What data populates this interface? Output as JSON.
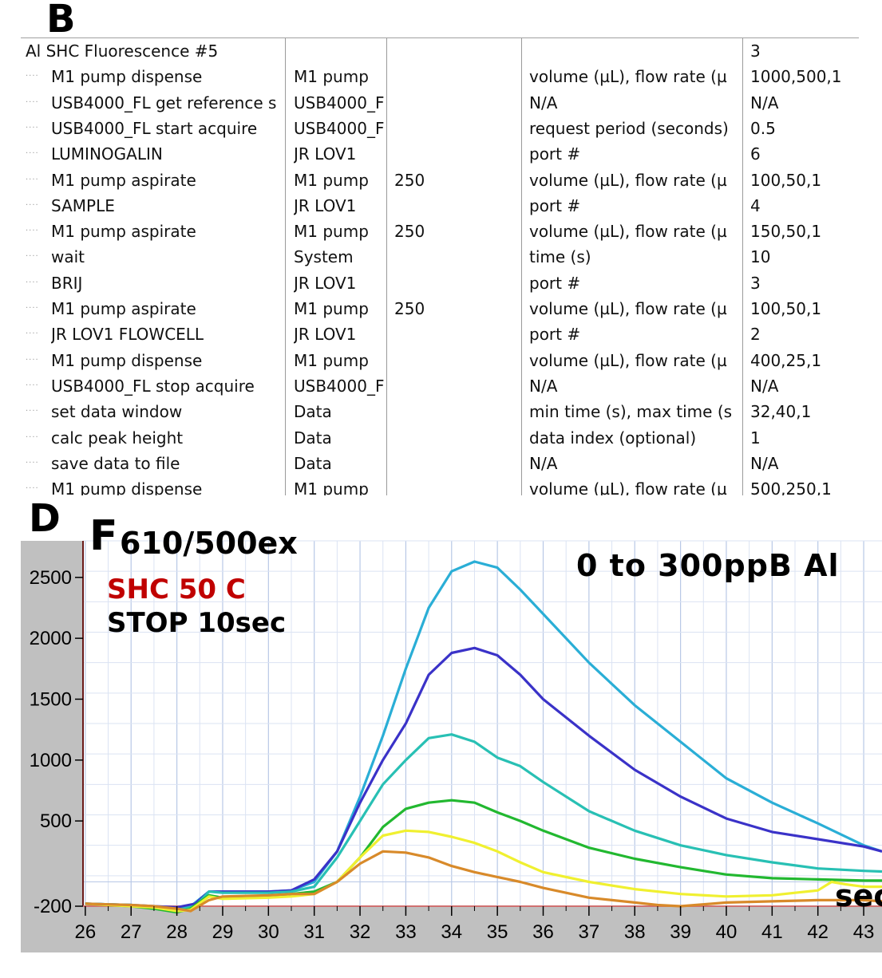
{
  "panel_b": {
    "letter": "B",
    "rows": [
      {
        "name": "Al SHC Fluorescence #5",
        "device": "",
        "param1": "",
        "param_name": "",
        "value": "3",
        "root": true
      },
      {
        "name": "M1 pump dispense",
        "device": "M1 pump",
        "param1": "",
        "param_name": "volume (µL), flow rate (µ",
        "value": "1000,500,1"
      },
      {
        "name": "USB4000_FL get reference s",
        "device": "USB4000_F",
        "param1": "",
        "param_name": "N/A",
        "value": "N/A"
      },
      {
        "name": "USB4000_FL start acquire",
        "device": "USB4000_F",
        "param1": "",
        "param_name": "request period (seconds)",
        "value": "0.5"
      },
      {
        "name": "LUMINOGALIN",
        "device": "JR LOV1",
        "param1": "",
        "param_name": "port #",
        "value": "6"
      },
      {
        "name": "M1 pump aspirate",
        "device": "M1 pump",
        "param1": "250",
        "param_name": "volume (µL), flow rate (µ",
        "value": "100,50,1"
      },
      {
        "name": "SAMPLE",
        "device": "JR LOV1",
        "param1": "",
        "param_name": "port #",
        "value": "4"
      },
      {
        "name": "M1 pump aspirate",
        "device": "M1 pump",
        "param1": "250",
        "param_name": "volume (µL), flow rate (µ",
        "value": "150,50,1"
      },
      {
        "name": "wait",
        "device": "System",
        "param1": "",
        "param_name": "time (s)",
        "value": "10"
      },
      {
        "name": "BRIJ",
        "device": "JR LOV1",
        "param1": "",
        "param_name": "port #",
        "value": "3"
      },
      {
        "name": "M1 pump aspirate",
        "device": "M1 pump",
        "param1": "250",
        "param_name": "volume (µL), flow rate (µ",
        "value": "100,50,1"
      },
      {
        "name": "JR LOV1 FLOWCELL",
        "device": "JR LOV1",
        "param1": "",
        "param_name": "port #",
        "value": "2"
      },
      {
        "name": "M1 pump dispense",
        "device": "M1 pump",
        "param1": "",
        "param_name": "volume (µL), flow rate (µ",
        "value": "400,25,1"
      },
      {
        "name": "USB4000_FL stop acquire",
        "device": "USB4000_F",
        "param1": "",
        "param_name": "N/A",
        "value": "N/A"
      },
      {
        "name": "set data window",
        "device": "Data",
        "param1": "",
        "param_name": "min time (s), max time (s",
        "value": "32,40,1"
      },
      {
        "name": "calc peak height",
        "device": "Data",
        "param1": "",
        "param_name": "data index (optional)",
        "value": "1"
      },
      {
        "name": "save data to file",
        "device": "Data",
        "param1": "",
        "param_name": "N/A",
        "value": "N/A"
      },
      {
        "name": "M1 pump dispense",
        "device": "M1 pump",
        "param1": "",
        "param_name": "volume (µL), flow rate (µ",
        "value": "500,250,1"
      }
    ]
  },
  "panel_d": {
    "letter": "D"
  },
  "chart_data": {
    "type": "line",
    "title_big": "F",
    "title_rest": "610/500ex",
    "annotations": [
      "0 to 300ppB Al",
      "SHC 50 C",
      "STOP 10sec",
      "sec"
    ],
    "annotation_colors": {
      "SHC 50 C": "#c00000"
    },
    "xlim": [
      25.95,
      43.4
    ],
    "ylim": [
      -200,
      2800
    ],
    "xticks": [
      26,
      27,
      28,
      29,
      30,
      31,
      32,
      33,
      34,
      35,
      36,
      37,
      38,
      39,
      40,
      41,
      42,
      43
    ],
    "yticks": [
      -200,
      500,
      1000,
      1500,
      2000,
      2500
    ],
    "ytick_labels": [
      "-200",
      "500",
      "1000",
      "1500",
      "2000",
      "2500"
    ],
    "grid": true,
    "series": [
      {
        "color": "#2aaed6",
        "points": [
          [
            26,
            -180
          ],
          [
            27,
            -190
          ],
          [
            27.5,
            -210
          ],
          [
            28,
            -220
          ],
          [
            28.3,
            -200
          ],
          [
            28.7,
            -80
          ],
          [
            29,
            -80
          ],
          [
            30,
            -80
          ],
          [
            30.5,
            -70
          ],
          [
            31,
            0
          ],
          [
            31.5,
            250
          ],
          [
            32,
            700
          ],
          [
            32.5,
            1200
          ],
          [
            33,
            1750
          ],
          [
            33.5,
            2250
          ],
          [
            34,
            2550
          ],
          [
            34.5,
            2630
          ],
          [
            35,
            2580
          ],
          [
            35.5,
            2400
          ],
          [
            36,
            2200
          ],
          [
            37,
            1800
          ],
          [
            38,
            1450
          ],
          [
            39,
            1150
          ],
          [
            40,
            850
          ],
          [
            41,
            650
          ],
          [
            42,
            480
          ],
          [
            43,
            300
          ],
          [
            43.4,
            250
          ]
        ]
      },
      {
        "color": "#3a32c8",
        "points": [
          [
            26,
            -180
          ],
          [
            27,
            -190
          ],
          [
            27.5,
            -200
          ],
          [
            28,
            -210
          ],
          [
            28.4,
            -180
          ],
          [
            28.7,
            -80
          ],
          [
            29,
            -80
          ],
          [
            30,
            -80
          ],
          [
            30.5,
            -70
          ],
          [
            31,
            20
          ],
          [
            31.5,
            250
          ],
          [
            32,
            650
          ],
          [
            32.5,
            1000
          ],
          [
            33,
            1300
          ],
          [
            33.5,
            1700
          ],
          [
            34,
            1880
          ],
          [
            34.5,
            1920
          ],
          [
            35,
            1860
          ],
          [
            35.5,
            1700
          ],
          [
            36,
            1500
          ],
          [
            37,
            1200
          ],
          [
            38,
            920
          ],
          [
            39,
            700
          ],
          [
            40,
            520
          ],
          [
            41,
            410
          ],
          [
            42,
            350
          ],
          [
            43,
            290
          ],
          [
            43.4,
            250
          ]
        ]
      },
      {
        "color": "#28c0b4",
        "points": [
          [
            26,
            -180
          ],
          [
            27,
            -190
          ],
          [
            27.5,
            -210
          ],
          [
            28,
            -230
          ],
          [
            28.4,
            -200
          ],
          [
            28.7,
            -80
          ],
          [
            29,
            -90
          ],
          [
            30,
            -90
          ],
          [
            30.5,
            -80
          ],
          [
            31,
            -40
          ],
          [
            31.5,
            200
          ],
          [
            32,
            500
          ],
          [
            32.5,
            800
          ],
          [
            33,
            1000
          ],
          [
            33.5,
            1180
          ],
          [
            34,
            1210
          ],
          [
            34.5,
            1150
          ],
          [
            35,
            1020
          ],
          [
            35.5,
            950
          ],
          [
            36,
            820
          ],
          [
            37,
            580
          ],
          [
            38,
            420
          ],
          [
            39,
            300
          ],
          [
            40,
            220
          ],
          [
            41,
            160
          ],
          [
            42,
            110
          ],
          [
            43,
            90
          ],
          [
            43.4,
            85
          ]
        ]
      },
      {
        "color": "#22b830",
        "points": [
          [
            26,
            -180
          ],
          [
            27,
            -200
          ],
          [
            27.5,
            -220
          ],
          [
            28,
            -250
          ],
          [
            28.3,
            -220
          ],
          [
            28.7,
            -110
          ],
          [
            29,
            -130
          ],
          [
            30,
            -120
          ],
          [
            30.5,
            -100
          ],
          [
            31,
            -80
          ],
          [
            31.5,
            0
          ],
          [
            32,
            200
          ],
          [
            32.5,
            450
          ],
          [
            33,
            600
          ],
          [
            33.5,
            650
          ],
          [
            34,
            670
          ],
          [
            34.5,
            650
          ],
          [
            35,
            570
          ],
          [
            35.5,
            500
          ],
          [
            36,
            420
          ],
          [
            37,
            280
          ],
          [
            38,
            190
          ],
          [
            39,
            120
          ],
          [
            40,
            60
          ],
          [
            41,
            30
          ],
          [
            42,
            20
          ],
          [
            43,
            10
          ],
          [
            43.4,
            10
          ]
        ]
      },
      {
        "color": "#f0f030",
        "points": [
          [
            26,
            -180
          ],
          [
            27,
            -200
          ],
          [
            27.5,
            -210
          ],
          [
            28,
            -240
          ],
          [
            28.3,
            -230
          ],
          [
            28.7,
            -120
          ],
          [
            29,
            -140
          ],
          [
            30,
            -130
          ],
          [
            30.5,
            -120
          ],
          [
            31,
            -100
          ],
          [
            31.5,
            0
          ],
          [
            32,
            200
          ],
          [
            32.5,
            380
          ],
          [
            33,
            420
          ],
          [
            33.5,
            410
          ],
          [
            34,
            370
          ],
          [
            34.5,
            320
          ],
          [
            35,
            250
          ],
          [
            35.5,
            160
          ],
          [
            36,
            80
          ],
          [
            37,
            0
          ],
          [
            38,
            -60
          ],
          [
            39,
            -100
          ],
          [
            40,
            -120
          ],
          [
            41,
            -110
          ],
          [
            41.5,
            -90
          ],
          [
            42,
            -70
          ],
          [
            42.3,
            0
          ],
          [
            42.6,
            -20
          ],
          [
            43,
            -40
          ],
          [
            43.4,
            -40
          ]
        ]
      },
      {
        "color": "#d88a2a",
        "points": [
          [
            26,
            -180
          ],
          [
            27,
            -190
          ],
          [
            27.5,
            -200
          ],
          [
            28,
            -220
          ],
          [
            28.3,
            -240
          ],
          [
            28.7,
            -150
          ],
          [
            29,
            -120
          ],
          [
            30,
            -110
          ],
          [
            30.5,
            -100
          ],
          [
            31,
            -100
          ],
          [
            31.5,
            0
          ],
          [
            32,
            150
          ],
          [
            32.5,
            250
          ],
          [
            33,
            240
          ],
          [
            33.5,
            200
          ],
          [
            34,
            130
          ],
          [
            34.5,
            80
          ],
          [
            35,
            40
          ],
          [
            35.5,
            0
          ],
          [
            36,
            -50
          ],
          [
            37,
            -130
          ],
          [
            38,
            -170
          ],
          [
            38.5,
            -190
          ],
          [
            39,
            -200
          ],
          [
            40,
            -170
          ],
          [
            41,
            -160
          ],
          [
            42,
            -150
          ],
          [
            43,
            -150
          ],
          [
            43.4,
            -160
          ]
        ]
      }
    ]
  }
}
